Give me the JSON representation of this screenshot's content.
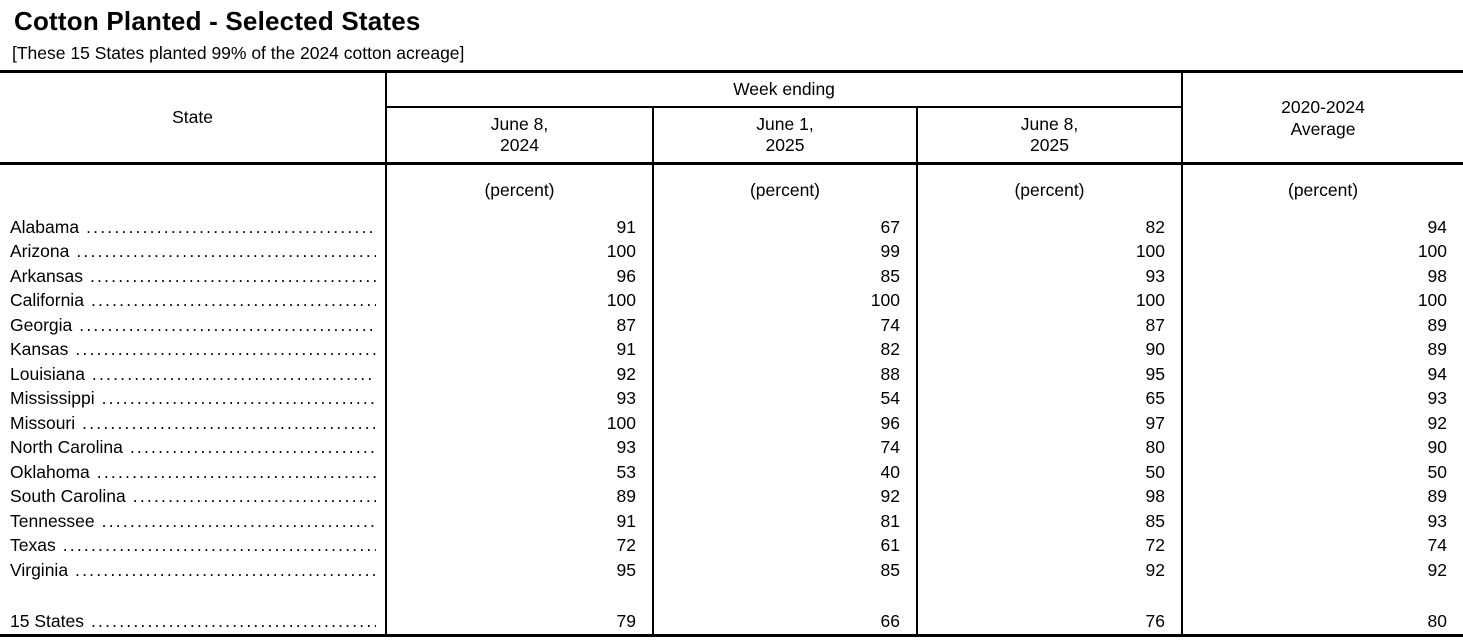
{
  "title": "Cotton Planted - Selected States",
  "subtitle": "[These 15 States planted 99% of the 2024 cotton acreage]",
  "table": {
    "state_header": "State",
    "group_header": "Week ending",
    "unit": "(percent)",
    "columns": [
      {
        "line1": "June 8,",
        "line2": "2024"
      },
      {
        "line1": "June 1,",
        "line2": "2025"
      },
      {
        "line1": "June 8,",
        "line2": "2025"
      }
    ],
    "average_header": {
      "line1": "2020-2024",
      "line2": "Average"
    },
    "rows": [
      {
        "state": "Alabama",
        "values": [
          "91",
          "67",
          "82",
          "94"
        ]
      },
      {
        "state": "Arizona",
        "values": [
          "100",
          "99",
          "100",
          "100"
        ]
      },
      {
        "state": "Arkansas",
        "values": [
          "96",
          "85",
          "93",
          "98"
        ]
      },
      {
        "state": "California",
        "values": [
          "100",
          "100",
          "100",
          "100"
        ]
      },
      {
        "state": "Georgia",
        "values": [
          "87",
          "74",
          "87",
          "89"
        ]
      },
      {
        "state": "Kansas",
        "values": [
          "91",
          "82",
          "90",
          "89"
        ]
      },
      {
        "state": "Louisiana",
        "values": [
          "92",
          "88",
          "95",
          "94"
        ]
      },
      {
        "state": "Mississippi",
        "values": [
          "93",
          "54",
          "65",
          "93"
        ]
      },
      {
        "state": "Missouri",
        "values": [
          "100",
          "96",
          "97",
          "92"
        ]
      },
      {
        "state": "North Carolina",
        "values": [
          "93",
          "74",
          "80",
          "90"
        ]
      },
      {
        "state": "Oklahoma",
        "values": [
          "53",
          "40",
          "50",
          "50"
        ]
      },
      {
        "state": "South Carolina",
        "values": [
          "89",
          "92",
          "98",
          "89"
        ]
      },
      {
        "state": "Tennessee",
        "values": [
          "91",
          "81",
          "85",
          "93"
        ]
      },
      {
        "state": "Texas",
        "values": [
          "72",
          "61",
          "72",
          "74"
        ]
      },
      {
        "state": "Virginia",
        "values": [
          "95",
          "85",
          "92",
          "92"
        ]
      }
    ],
    "total_row": {
      "state": "15 States",
      "values": [
        "79",
        "66",
        "76",
        "80"
      ]
    }
  },
  "colors": {
    "text": "#000000",
    "border": "#000000",
    "background": "#ffffff"
  }
}
